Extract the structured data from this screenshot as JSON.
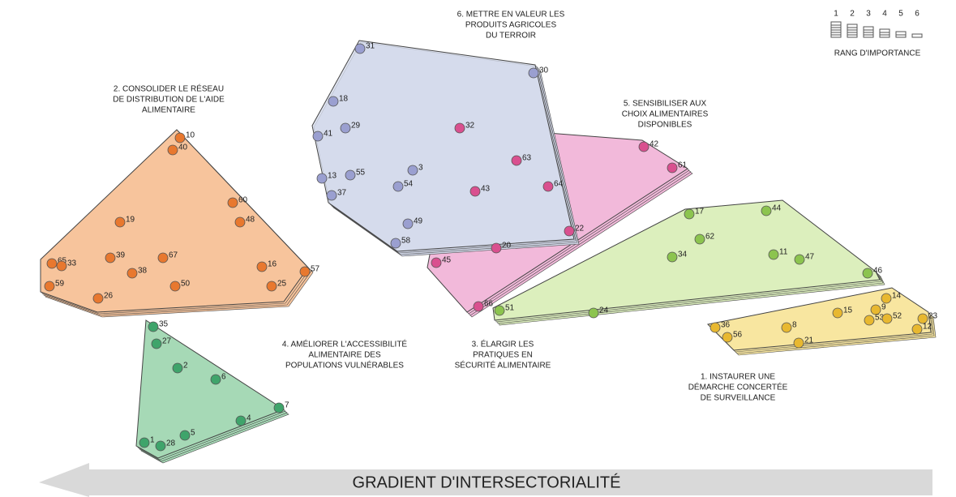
{
  "legend": {
    "ranks": [
      "1",
      "2",
      "3",
      "4",
      "5",
      "6"
    ],
    "title": "RANG D'IMPORTANCE"
  },
  "clusters": [
    {
      "label": [
        "6. METTRE EN VALEUR LES",
        "PRODUITS AGRICOLES",
        "DU TERROIR"
      ],
      "points": [
        31,
        30,
        18,
        41,
        29,
        13,
        55,
        37,
        3,
        54,
        49,
        58
      ]
    },
    {
      "label": [
        "5. SENSIBILISER AUX",
        "CHOIX ALIMENTAIRES",
        "DISPONIBLES"
      ],
      "points": [
        32,
        42,
        61,
        63,
        43,
        64,
        22,
        20,
        45,
        66
      ]
    },
    {
      "label": [
        "2. CONSOLIDER LE RÉSEAU",
        "DE DISTRIBUTION DE L'AIDE",
        "ALIMENTAIRE"
      ],
      "points": [
        10,
        40,
        60,
        48,
        19,
        65,
        33,
        39,
        67,
        38,
        16,
        57,
        59,
        26,
        50,
        25
      ]
    },
    {
      "label": [
        "4. AMÉLIORER L'ACCESSIBILITÉ",
        "ALIMENTAIRE DES",
        "POPULATIONS VULNÉRABLES"
      ],
      "points": [
        35,
        27,
        2,
        6,
        7,
        4,
        1,
        28,
        5
      ]
    },
    {
      "label": [
        "3. ÉLARGIR LES",
        "PRATIQUES EN",
        "SÉCURITÉ ALIMENTAIRE"
      ],
      "points": [
        17,
        44,
        62,
        34,
        11,
        47,
        46,
        51,
        24
      ]
    },
    {
      "label": [
        "1. INSTAURER UNE",
        "DÉMARCHE CONCERTÉE",
        "DE SURVEILLANCE"
      ],
      "points": [
        36,
        56,
        8,
        21,
        15,
        14,
        9,
        53,
        52,
        23,
        12
      ]
    }
  ],
  "gradient": "GRADIENT D'INTERSECTORIALITÉ"
}
